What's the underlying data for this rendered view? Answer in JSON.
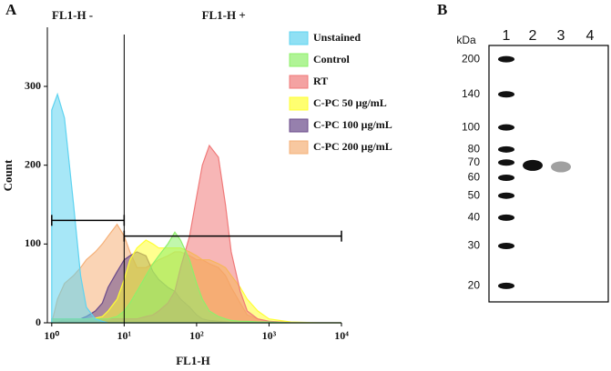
{
  "chart_data": [
    {
      "type": "area",
      "panel": "A",
      "xlabel": "FL1-H",
      "ylabel": "Count",
      "xscale": "log",
      "xlim": [
        0.87,
        10000
      ],
      "ylim": [
        0,
        375
      ],
      "xticks": [
        {
          "value": 1,
          "label": "10⁰"
        },
        {
          "value": 10,
          "label": "10¹"
        },
        {
          "value": 100,
          "label": "10²"
        },
        {
          "value": 1000,
          "label": "10³"
        },
        {
          "value": 10000,
          "label": "10⁴"
        }
      ],
      "yticks": [
        0,
        100,
        200,
        300
      ],
      "threshold_x": 10,
      "gates": [
        {
          "label": "FL1-H -",
          "x": [
            1,
            10
          ],
          "y": 130
        },
        {
          "label": "FL1-H +",
          "x": [
            10,
            10000
          ],
          "y": 110
        }
      ],
      "x": [
        1,
        1.2,
        1.5,
        2,
        2.5,
        3,
        4,
        5,
        6,
        8,
        10,
        12,
        15,
        20,
        25,
        30,
        40,
        50,
        60,
        80,
        100,
        120,
        150,
        200,
        250,
        300,
        400,
        500,
        700,
        1000,
        2000,
        5000,
        10000
      ],
      "series": [
        {
          "name": "Unstained",
          "color": "#5fd3f0",
          "values": [
            270,
            290,
            260,
            150,
            60,
            20,
            5,
            2,
            0,
            0,
            0,
            0,
            0,
            0,
            0,
            0,
            0,
            0,
            0,
            0,
            0,
            0,
            0,
            0,
            0,
            0,
            0,
            0,
            0,
            0,
            0,
            0,
            0
          ]
        },
        {
          "name": "Control",
          "color": "#8ef06a",
          "values": [
            5,
            5,
            5,
            5,
            5,
            5,
            5,
            5,
            5,
            8,
            15,
            25,
            40,
            60,
            75,
            85,
            100,
            115,
            105,
            80,
            50,
            30,
            15,
            8,
            5,
            3,
            2,
            2,
            1,
            1,
            0,
            0,
            0
          ]
        },
        {
          "name": "RT",
          "color": "#f07a7a",
          "values": [
            5,
            5,
            5,
            5,
            5,
            5,
            5,
            5,
            5,
            5,
            5,
            5,
            5,
            8,
            10,
            15,
            25,
            40,
            70,
            110,
            160,
            200,
            225,
            210,
            150,
            90,
            40,
            15,
            5,
            2,
            0,
            0,
            0
          ]
        },
        {
          "name": "C-PC 50 μg/mL",
          "color": "#ffff33",
          "values": [
            5,
            5,
            5,
            5,
            5,
            5,
            6,
            8,
            15,
            30,
            55,
            80,
            95,
            105,
            100,
            95,
            95,
            95,
            95,
            90,
            85,
            80,
            80,
            75,
            70,
            60,
            45,
            30,
            15,
            5,
            1,
            0,
            0
          ]
        },
        {
          "name": "C-PC 100 μg/mL",
          "color": "#6a4a8a",
          "values": [
            0,
            0,
            5,
            5,
            5,
            8,
            15,
            25,
            45,
            65,
            80,
            85,
            90,
            85,
            65,
            55,
            45,
            40,
            30,
            20,
            10,
            5,
            3,
            2,
            1,
            0,
            0,
            0,
            0,
            0,
            0,
            0,
            0
          ]
        },
        {
          "name": "C-PC 200 μg/mL",
          "color": "#f5b078",
          "values": [
            0,
            30,
            50,
            60,
            70,
            80,
            90,
            100,
            110,
            125,
            110,
            90,
            70,
            70,
            75,
            80,
            85,
            90,
            90,
            85,
            80,
            80,
            75,
            70,
            60,
            45,
            25,
            10,
            5,
            2,
            0,
            0,
            0
          ]
        }
      ]
    },
    {
      "type": "blot",
      "panel": "B",
      "ylabel": "kDa",
      "yscale": "log",
      "ylim": [
        17,
        230
      ],
      "yticks": [
        200,
        140,
        100,
        80,
        70,
        60,
        50,
        40,
        30,
        20
      ],
      "categories": [
        "1",
        "2",
        "3",
        "4"
      ],
      "values": [
        null,
        68,
        67,
        null
      ],
      "band_intensity": [
        null,
        1,
        0.4,
        null
      ]
    }
  ]
}
